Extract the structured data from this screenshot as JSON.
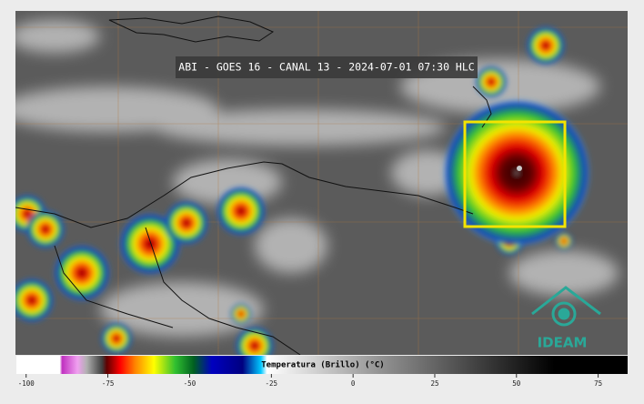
{
  "header": {
    "title": "ABI - GOES 16 - CANAL 13 - 2024-07-01 07:30 HLC"
  },
  "colorbar": {
    "label": "Temperatura (Brillo) (°C)",
    "range": [
      -103,
      84
    ],
    "ticks": [
      -100,
      -75,
      -50,
      -25,
      0,
      25,
      50,
      75
    ]
  },
  "logo": {
    "text": "IDEAM"
  }
}
